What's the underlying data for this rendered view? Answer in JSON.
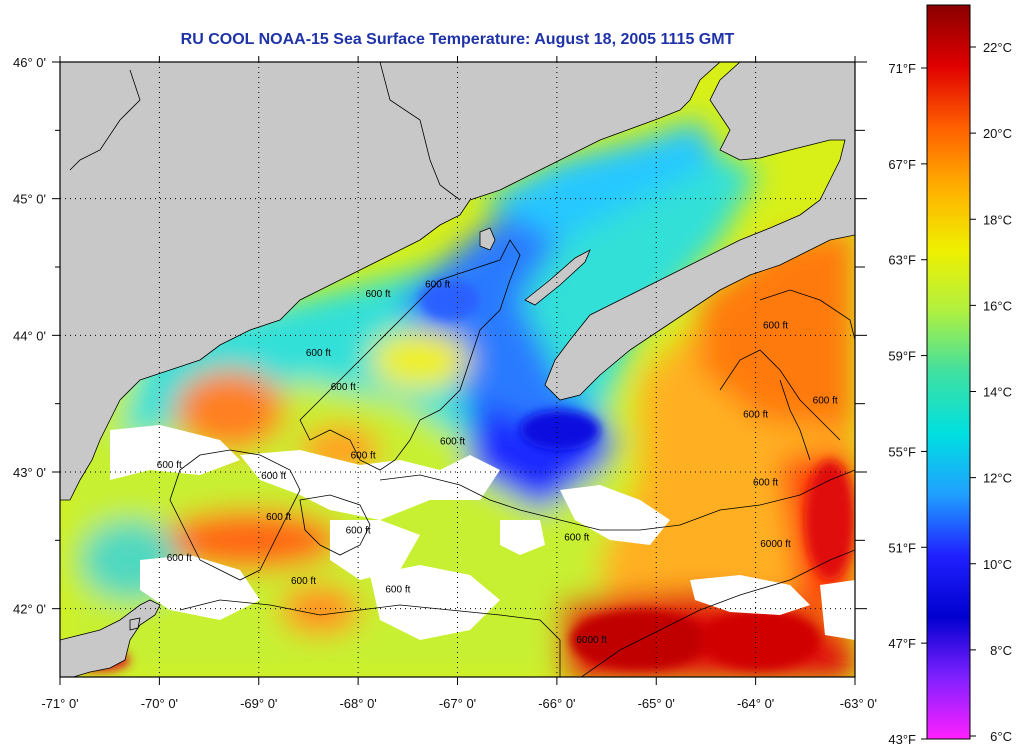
{
  "title": "RU COOL  NOAA-15  Sea Surface Temperature:  August 18, 2005 1115 GMT",
  "colors": {
    "land": "#c8c8c8",
    "cloud_mask": "#ffffff",
    "title": "#1f33a8",
    "contour": "#000000"
  },
  "map": {
    "lon_range": [
      -71,
      -63
    ],
    "lat_range": [
      41.5,
      46
    ],
    "lon_ticks": [
      {
        "value": -71,
        "label": "-71° 0'"
      },
      {
        "value": -70,
        "label": "-70° 0'"
      },
      {
        "value": -69,
        "label": "-69° 0'"
      },
      {
        "value": -68,
        "label": "-68° 0'"
      },
      {
        "value": -67,
        "label": "-67° 0'"
      },
      {
        "value": -66,
        "label": "-66° 0'"
      },
      {
        "value": -65,
        "label": "-65° 0'"
      },
      {
        "value": -64,
        "label": "-64° 0'"
      },
      {
        "value": -63,
        "label": "-63° 0'"
      }
    ],
    "lat_ticks": [
      {
        "value": 46,
        "label": "46° 0'"
      },
      {
        "value": 45,
        "label": "45° 0'"
      },
      {
        "value": 44,
        "label": "44° 0'"
      },
      {
        "value": 43,
        "label": "43° 0'"
      },
      {
        "value": 42,
        "label": "42° 0'"
      }
    ],
    "contour_labels": [
      {
        "lon": -67.8,
        "lat": 44.28,
        "label": "600 ft"
      },
      {
        "lon": -67.2,
        "lat": 44.35,
        "label": "600 ft"
      },
      {
        "lon": -68.15,
        "lat": 43.6,
        "label": "600 ft"
      },
      {
        "lon": -68.4,
        "lat": 43.85,
        "label": "600 ft"
      },
      {
        "lon": -69.9,
        "lat": 43.03,
        "label": "600 ft"
      },
      {
        "lon": -68.85,
        "lat": 42.95,
        "label": "600 ft"
      },
      {
        "lon": -67.95,
        "lat": 43.1,
        "label": "600 ft"
      },
      {
        "lon": -68.8,
        "lat": 42.65,
        "label": "600 ft"
      },
      {
        "lon": -68.0,
        "lat": 42.55,
        "label": "600 ft"
      },
      {
        "lon": -68.55,
        "lat": 42.18,
        "label": "600 ft"
      },
      {
        "lon": -67.6,
        "lat": 42.12,
        "label": "600 ft"
      },
      {
        "lon": -69.8,
        "lat": 42.35,
        "label": "600 ft"
      },
      {
        "lon": -67.05,
        "lat": 43.2,
        "label": "600 ft"
      },
      {
        "lon": -65.8,
        "lat": 42.5,
        "label": "600 ft"
      },
      {
        "lon": -63.9,
        "lat": 42.9,
        "label": "600 ft"
      },
      {
        "lon": -64.0,
        "lat": 43.4,
        "label": "600 ft"
      },
      {
        "lon": -63.3,
        "lat": 43.5,
        "label": "600 ft"
      },
      {
        "lon": -63.8,
        "lat": 44.05,
        "label": "600 ft"
      },
      {
        "lon": -63.8,
        "lat": 42.45,
        "label": "6000 ft"
      },
      {
        "lon": -65.65,
        "lat": 41.75,
        "label": "6000 ft"
      }
    ]
  },
  "colorbar": {
    "celsius_labels": [
      "22°C",
      "20°C",
      "18°C",
      "16°C",
      "14°C",
      "12°C",
      "10°C",
      "8°C",
      "6°C"
    ],
    "fahrenheit_labels": [
      "71°F",
      "67°F",
      "63°F",
      "59°F",
      "55°F",
      "51°F",
      "47°F",
      "43°F"
    ],
    "stops": [
      "#8a0000",
      "#e00000",
      "#ff6000",
      "#ffb000",
      "#f0f000",
      "#b0f040",
      "#40e0a0",
      "#00e0e0",
      "#20a0ff",
      "#2020ff",
      "#0000d0",
      "#8020ff",
      "#ff20ff"
    ]
  }
}
